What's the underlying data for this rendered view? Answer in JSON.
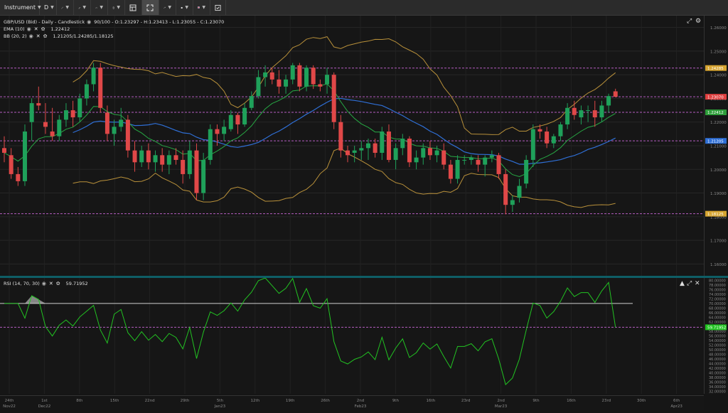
{
  "toolbar": {
    "instrument_label": "Instrument",
    "timeframe_label": "D",
    "items": [
      {
        "name": "instrument-dropdown",
        "icon": "instrument"
      },
      {
        "name": "timeframe-dropdown",
        "icon": "timeframe"
      },
      {
        "name": "drawing-tools-button",
        "icon": "line-tool-icon"
      },
      {
        "name": "pencil-button",
        "icon": "pencil-icon"
      },
      {
        "name": "indicators-button",
        "icon": "indicators-icon"
      },
      {
        "name": "delete-button",
        "icon": "trash-icon"
      },
      {
        "name": "layout-button",
        "icon": "layout-icon"
      },
      {
        "name": "fullscreen-button",
        "icon": "fullscreen-icon"
      },
      {
        "name": "share-button",
        "icon": "share-icon"
      },
      {
        "name": "theme-button",
        "icon": "theme-icon"
      },
      {
        "name": "language-button",
        "icon": "uk-flag-icon"
      },
      {
        "name": "settings-button",
        "icon": "settings-icon"
      }
    ]
  },
  "legend": {
    "main": "GBP/USD (Bid) - Daily - Candlestick",
    "main_values": "90/100 - O:1.23297 - H:1.23413 - L:1.23055 - C:1.23070",
    "ema_label": "EMA (10)",
    "ema_value": "1.22412",
    "bb_label": "BB (20, 2)",
    "bb_value": "1.21205/1.24285/1.18125",
    "rsi_label": "RSI (14, 70, 30)",
    "rsi_value": "59.71952"
  },
  "price_axis": {
    "ticks": [
      "1.26000",
      "1.25000",
      "1.24000",
      "1.23000",
      "1.22000",
      "1.21000",
      "1.20000",
      "1.19000",
      "1.18000",
      "1.17000",
      "1.16000"
    ],
    "badges": [
      {
        "label": "1.24285",
        "color": "#d6a431",
        "value": 1.24285
      },
      {
        "label": "1.23070",
        "color": "#e04040",
        "value": 1.2307
      },
      {
        "label": "1.22412",
        "color": "#2e9d3a",
        "value": 1.22412
      },
      {
        "label": "1.21205",
        "color": "#2f6fd6",
        "value": 1.21205
      },
      {
        "label": "1.18125",
        "color": "#d6a431",
        "value": 1.18125
      }
    ]
  },
  "rsi_axis": {
    "ticks": [
      "80.00000",
      "78.00000",
      "76.00000",
      "74.00000",
      "72.00000",
      "70.00000",
      "68.00000",
      "66.00000",
      "64.00000",
      "62.00000",
      "60.00000",
      "58.00000",
      "56.00000",
      "54.00000",
      "52.00000",
      "50.00000",
      "48.00000",
      "46.00000",
      "44.00000",
      "42.00000",
      "40.00000",
      "38.00000",
      "36.00000",
      "34.00000",
      "32.00000"
    ],
    "badge": {
      "label": "59.71952",
      "color": "#22c322",
      "value": 59.71952
    }
  },
  "time_axis": [
    {
      "l1": "24th",
      "l2": "Nov22"
    },
    {
      "l1": "1st",
      "l2": "Dec22"
    },
    {
      "l1": "8th",
      "l2": ""
    },
    {
      "l1": "15th",
      "l2": ""
    },
    {
      "l1": "22nd",
      "l2": ""
    },
    {
      "l1": "29th",
      "l2": ""
    },
    {
      "l1": "5th",
      "l2": "Jan23"
    },
    {
      "l1": "12th",
      "l2": ""
    },
    {
      "l1": "19th",
      "l2": ""
    },
    {
      "l1": "26th",
      "l2": ""
    },
    {
      "l1": "2nd",
      "l2": "Feb23"
    },
    {
      "l1": "9th",
      "l2": ""
    },
    {
      "l1": "16th",
      "l2": ""
    },
    {
      "l1": "23rd",
      "l2": ""
    },
    {
      "l1": "2nd",
      "l2": "Mar23"
    },
    {
      "l1": "9th",
      "l2": ""
    },
    {
      "l1": "16th",
      "l2": ""
    },
    {
      "l1": "23rd",
      "l2": ""
    },
    {
      "l1": "30th",
      "l2": ""
    },
    {
      "l1": "6th",
      "l2": "Apr23"
    }
  ],
  "colors": {
    "up": "#1fa15a",
    "down": "#e04848",
    "ema": "#27a844",
    "bb_mid": "#2f6fd6",
    "bb_band": "#b8903a",
    "rsi": "#22c322",
    "level_line": "#b45cc0"
  },
  "chart_data": {
    "type": "candlestick",
    "instrument": "GBP/USD",
    "ylim": [
      1.155,
      1.265
    ],
    "rsi_ylim": [
      31,
      81
    ],
    "levels": [
      1.24285,
      1.2307,
      1.22412,
      1.21205,
      1.18125
    ],
    "rsi_levels": [
      70,
      59.71952
    ],
    "candles": [
      [
        1.209,
        1.214,
        1.203,
        1.207
      ],
      [
        1.206,
        1.209,
        1.196,
        1.198
      ],
      [
        1.198,
        1.201,
        1.193,
        1.195
      ],
      [
        1.195,
        1.219,
        1.193,
        1.216
      ],
      [
        1.22,
        1.23,
        1.212,
        1.228
      ],
      [
        1.228,
        1.235,
        1.225,
        1.227
      ],
      [
        1.22,
        1.228,
        1.215,
        1.218
      ],
      [
        1.216,
        1.226,
        1.212,
        1.214
      ],
      [
        1.214,
        1.223,
        1.212,
        1.221
      ],
      [
        1.221,
        1.228,
        1.218,
        1.225
      ],
      [
        1.225,
        1.229,
        1.218,
        1.222
      ],
      [
        1.222,
        1.232,
        1.22,
        1.23
      ],
      [
        1.23,
        1.238,
        1.227,
        1.236
      ],
      [
        1.236,
        1.245,
        1.233,
        1.243
      ],
      [
        1.243,
        1.245,
        1.224,
        1.226
      ],
      [
        1.224,
        1.227,
        1.212,
        1.215
      ],
      [
        1.215,
        1.221,
        1.21,
        1.218
      ],
      [
        1.218,
        1.226,
        1.216,
        1.221
      ],
      [
        1.221,
        1.223,
        1.205,
        1.208
      ],
      [
        1.208,
        1.212,
        1.199,
        1.203
      ],
      [
        1.203,
        1.21,
        1.201,
        1.208
      ],
      [
        1.208,
        1.211,
        1.2,
        1.203
      ],
      [
        1.203,
        1.208,
        1.199,
        1.206
      ],
      [
        1.206,
        1.209,
        1.199,
        1.202
      ],
      [
        1.202,
        1.208,
        1.198,
        1.206
      ],
      [
        1.206,
        1.209,
        1.202,
        1.204
      ],
      [
        1.204,
        1.208,
        1.194,
        1.198
      ],
      [
        1.198,
        1.212,
        1.196,
        1.208
      ],
      [
        1.208,
        1.211,
        1.187,
        1.19
      ],
      [
        1.19,
        1.207,
        1.187,
        1.204
      ],
      [
        1.204,
        1.219,
        1.202,
        1.217
      ],
      [
        1.217,
        1.219,
        1.21,
        1.215
      ],
      [
        1.215,
        1.221,
        1.212,
        1.218
      ],
      [
        1.217,
        1.225,
        1.216,
        1.223
      ],
      [
        1.223,
        1.224,
        1.215,
        1.219
      ],
      [
        1.219,
        1.228,
        1.218,
        1.226
      ],
      [
        1.226,
        1.233,
        1.225,
        1.231
      ],
      [
        1.231,
        1.242,
        1.23,
        1.239
      ],
      [
        1.239,
        1.244,
        1.235,
        1.241
      ],
      [
        1.241,
        1.243,
        1.236,
        1.238
      ],
      [
        1.238,
        1.242,
        1.232,
        1.235
      ],
      [
        1.235,
        1.24,
        1.232,
        1.238
      ],
      [
        1.238,
        1.245,
        1.236,
        1.244
      ],
      [
        1.244,
        1.245,
        1.233,
        1.235
      ],
      [
        1.235,
        1.244,
        1.233,
        1.243
      ],
      [
        1.243,
        1.244,
        1.234,
        1.236
      ],
      [
        1.236,
        1.238,
        1.233,
        1.235
      ],
      [
        1.236,
        1.243,
        1.232,
        1.24
      ],
      [
        1.24,
        1.241,
        1.217,
        1.22
      ],
      [
        1.22,
        1.223,
        1.205,
        1.208
      ],
      [
        1.208,
        1.21,
        1.203,
        1.206
      ],
      [
        1.207,
        1.21,
        1.203,
        1.208
      ],
      [
        1.208,
        1.212,
        1.204,
        1.209
      ],
      [
        1.209,
        1.213,
        1.204,
        1.211
      ],
      [
        1.211,
        1.213,
        1.205,
        1.207
      ],
      [
        1.207,
        1.218,
        1.204,
        1.216
      ],
      [
        1.216,
        1.219,
        1.203,
        1.204
      ],
      [
        1.204,
        1.211,
        1.2,
        1.209
      ],
      [
        1.209,
        1.215,
        1.206,
        1.213
      ],
      [
        1.213,
        1.214,
        1.201,
        1.203
      ],
      [
        1.203,
        1.208,
        1.2,
        1.205
      ],
      [
        1.205,
        1.211,
        1.202,
        1.209
      ],
      [
        1.209,
        1.212,
        1.204,
        1.206
      ],
      [
        1.206,
        1.21,
        1.203,
        1.208
      ],
      [
        1.208,
        1.211,
        1.2,
        1.202
      ],
      [
        1.202,
        1.204,
        1.194,
        1.196
      ],
      [
        1.196,
        1.206,
        1.194,
        1.204
      ],
      [
        1.204,
        1.206,
        1.202,
        1.204
      ],
      [
        1.204,
        1.206,
        1.202,
        1.205
      ],
      [
        1.204,
        1.206,
        1.199,
        1.202
      ],
      [
        1.202,
        1.206,
        1.197,
        1.205
      ],
      [
        1.205,
        1.208,
        1.203,
        1.206
      ],
      [
        1.206,
        1.207,
        1.196,
        1.198
      ],
      [
        1.198,
        1.2,
        1.181,
        1.185
      ],
      [
        1.185,
        1.189,
        1.182,
        1.187
      ],
      [
        1.188,
        1.196,
        1.186,
        1.193
      ],
      [
        1.194,
        1.206,
        1.192,
        1.204
      ],
      [
        1.204,
        1.219,
        1.201,
        1.217
      ],
      [
        1.217,
        1.219,
        1.213,
        1.216
      ],
      [
        1.216,
        1.218,
        1.209,
        1.211
      ],
      [
        1.211,
        1.215,
        1.209,
        1.214
      ],
      [
        1.214,
        1.22,
        1.212,
        1.219
      ],
      [
        1.219,
        1.228,
        1.217,
        1.226
      ],
      [
        1.226,
        1.229,
        1.221,
        1.223
      ],
      [
        1.222,
        1.227,
        1.219,
        1.225
      ],
      [
        1.225,
        1.227,
        1.22,
        1.225
      ],
      [
        1.225,
        1.229,
        1.218,
        1.222
      ],
      [
        1.222,
        1.229,
        1.22,
        1.227
      ],
      [
        1.227,
        1.232,
        1.224,
        1.231
      ],
      [
        1.233,
        1.2341,
        1.2305,
        1.2307
      ]
    ]
  }
}
